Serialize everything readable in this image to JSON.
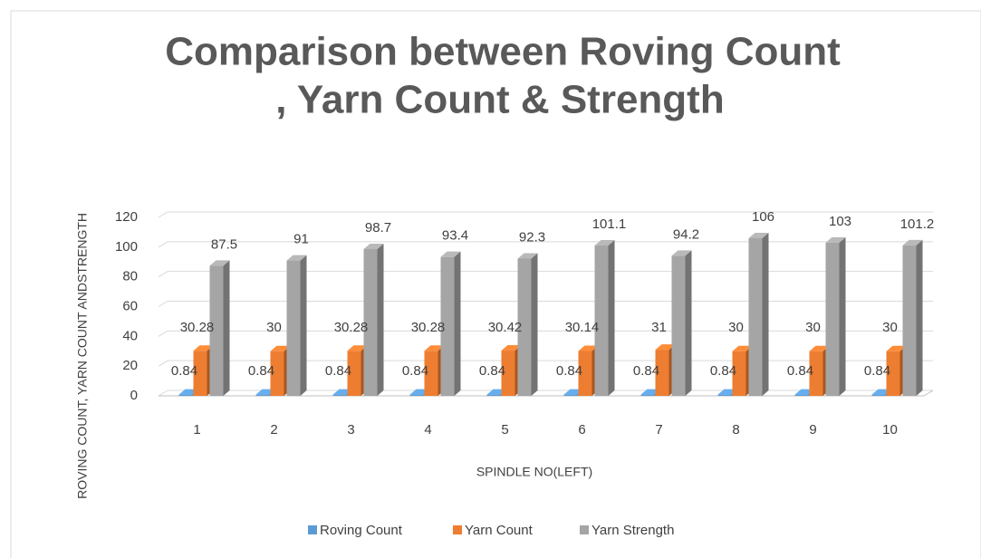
{
  "chart_data": {
    "type": "bar3d",
    "title_lines": [
      "Comparison between Roving Count",
      ", Yarn Count & Strength"
    ],
    "x_label": "SPINDLE NO(LEFT)",
    "y_label": "ROVING COUNT, YARN COUNT ANDSTRENGTH",
    "categories": [
      "1",
      "2",
      "3",
      "4",
      "5",
      "6",
      "7",
      "8",
      "9",
      "10"
    ],
    "series": [
      {
        "name": "Roving Count",
        "color": "#5b9bd5",
        "values": [
          0.84,
          0.84,
          0.84,
          0.84,
          0.84,
          0.84,
          0.84,
          0.84,
          0.84,
          0.84
        ]
      },
      {
        "name": "Yarn Count",
        "color": "#ed7d31",
        "values": [
          30.28,
          30,
          30.28,
          30.28,
          30.42,
          30.14,
          31,
          30,
          30,
          30
        ]
      },
      {
        "name": "Yarn Strength",
        "color": "#a5a5a5",
        "values": [
          87.5,
          91,
          98.7,
          93.4,
          92.3,
          101.1,
          94.2,
          106,
          103,
          101.2
        ]
      }
    ],
    "ylim": [
      0,
      120
    ],
    "yticks": [
      0,
      20,
      40,
      60,
      80,
      100,
      120
    ],
    "grid": true,
    "legend": "bottom"
  }
}
